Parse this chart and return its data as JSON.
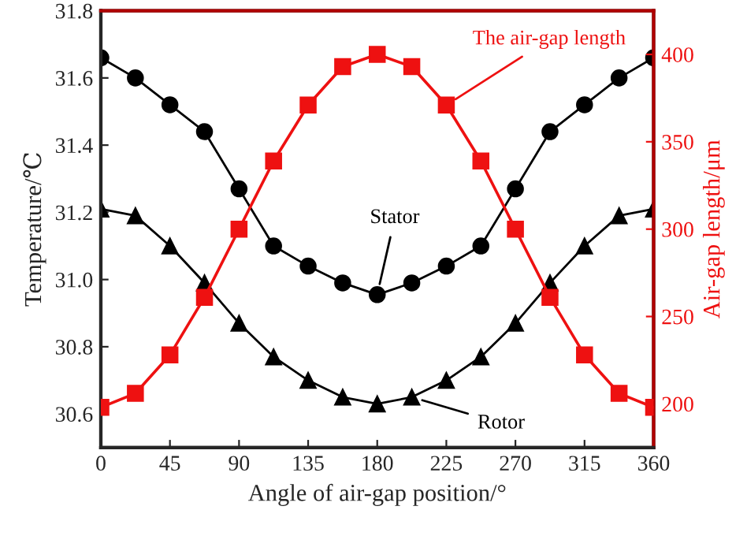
{
  "chart_data": {
    "type": "line",
    "xlabel": "Angle of air-gap position/°",
    "ylabel": "Temperature/℃",
    "y2label": "Air-gap length/μm",
    "x": [
      0,
      22.5,
      45,
      67.5,
      90,
      112.5,
      135,
      157.5,
      180,
      202.5,
      225,
      247.5,
      270,
      292.5,
      315,
      337.5,
      360
    ],
    "series": [
      {
        "name": "Stator",
        "color": "#000000",
        "marker": "circle",
        "values": [
          31.66,
          31.6,
          31.52,
          31.44,
          31.27,
          31.1,
          31.04,
          30.99,
          30.955,
          30.99,
          31.04,
          31.1,
          31.27,
          31.44,
          31.52,
          31.6,
          31.66
        ]
      },
      {
        "name": "Rotor",
        "color": "#000000",
        "marker": "triangle",
        "values": [
          31.21,
          31.19,
          31.1,
          30.99,
          30.87,
          30.77,
          30.7,
          30.65,
          30.63,
          30.65,
          30.7,
          30.77,
          30.87,
          30.99,
          31.1,
          31.19,
          31.21
        ]
      },
      {
        "name": "The air-gap length",
        "color": "#ee1111",
        "marker": "square",
        "axis": "y2",
        "values": [
          198,
          206,
          228,
          261,
          300,
          339,
          371,
          393,
          400,
          393,
          371,
          339,
          300,
          261,
          228,
          206,
          198
        ]
      }
    ],
    "xlim": [
      0,
      360
    ],
    "xticks": [
      0,
      45,
      90,
      135,
      180,
      225,
      270,
      315,
      360
    ],
    "ylim": [
      30.5,
      31.8
    ],
    "yticks": [
      {
        "value": 30.6,
        "label": "30.6"
      },
      {
        "value": 30.8,
        "label": "30.8"
      },
      {
        "value": 31.0,
        "label": "31.0"
      },
      {
        "value": 31.2,
        "label": "31.2"
      },
      {
        "value": 31.4,
        "label": "31.4"
      },
      {
        "value": 31.6,
        "label": "31.6"
      },
      {
        "value": 31.8,
        "label": "31.8"
      }
    ],
    "y2lim": [
      175,
      425
    ],
    "y2ticks": [
      200,
      250,
      300,
      350,
      400
    ],
    "grid": false,
    "legend": false,
    "line_style": "solid"
  }
}
